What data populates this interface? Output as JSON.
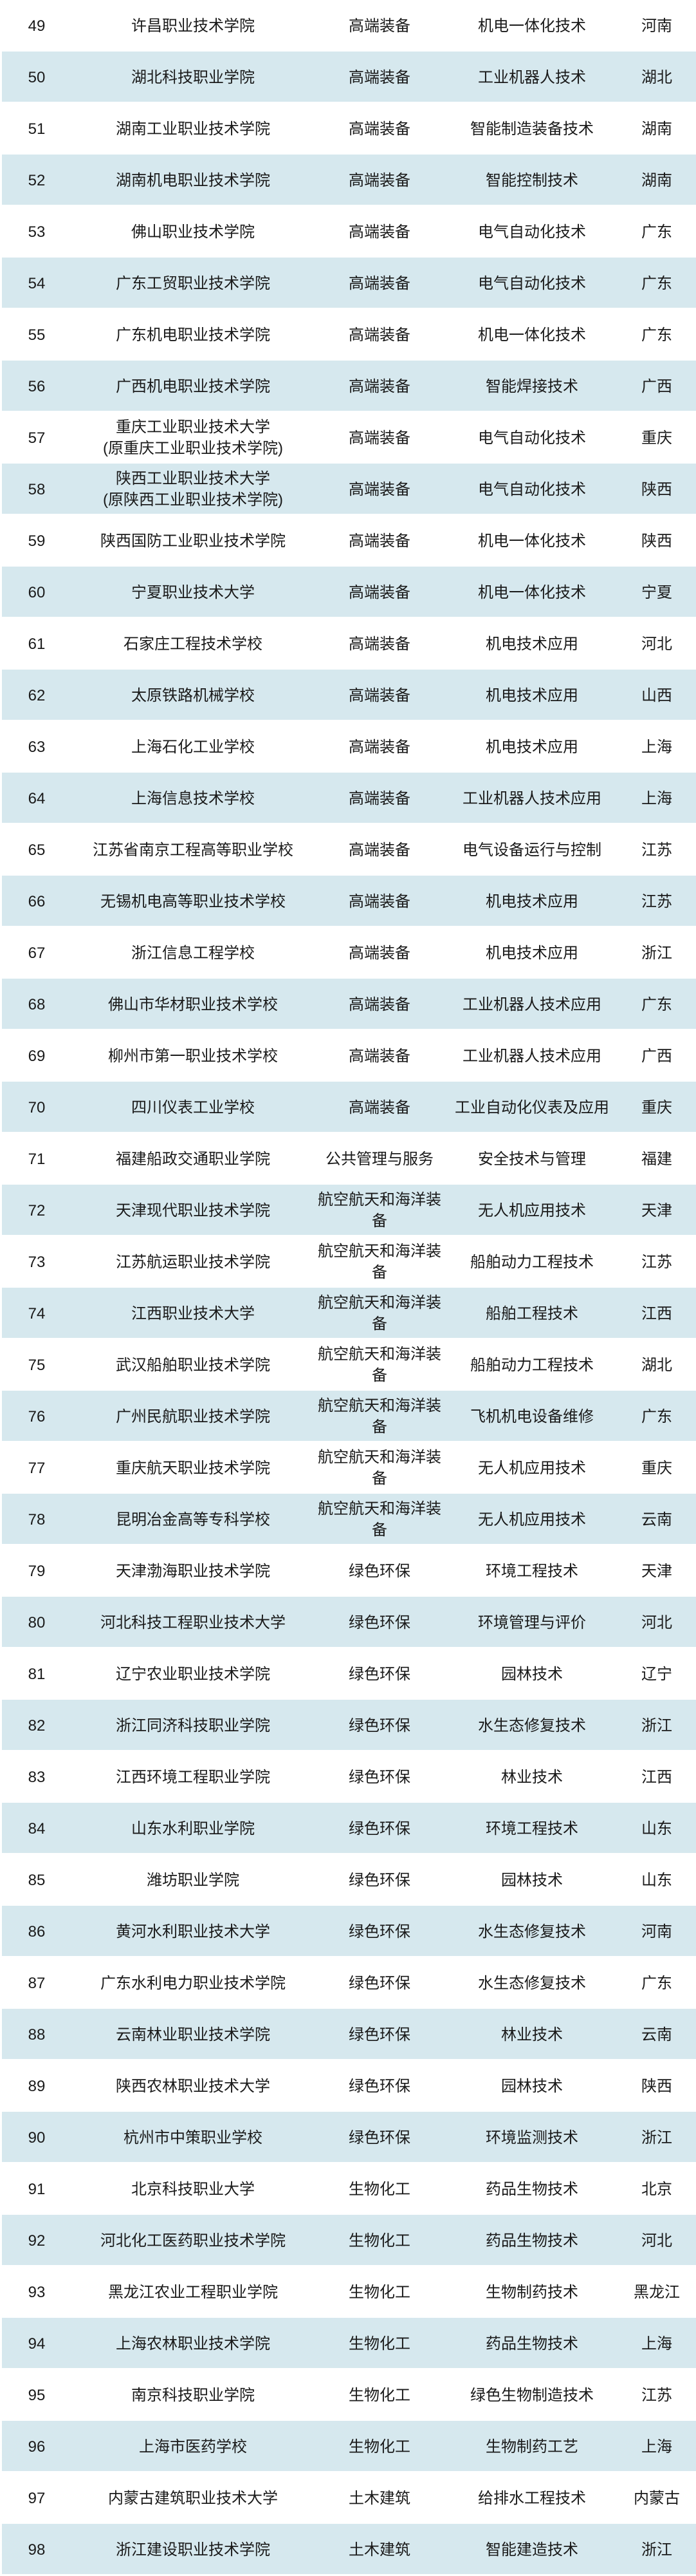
{
  "colors": {
    "row_bg": "#ffffff",
    "row_alt_bg": "#d6e8ee",
    "text": "#1a1a1a"
  },
  "table": {
    "rows": [
      {
        "rank": 49,
        "school": "许昌职业技术学院",
        "category": "高端装备",
        "major": "机电一体化技术",
        "province": "河南"
      },
      {
        "rank": 50,
        "school": "湖北科技职业学院",
        "category": "高端装备",
        "major": "工业机器人技术",
        "province": "湖北"
      },
      {
        "rank": 51,
        "school": "湖南工业职业技术学院",
        "category": "高端装备",
        "major": "智能制造装备技术",
        "province": "湖南"
      },
      {
        "rank": 52,
        "school": "湖南机电职业技术学院",
        "category": "高端装备",
        "major": "智能控制技术",
        "province": "湖南"
      },
      {
        "rank": 53,
        "school": "佛山职业技术学院",
        "category": "高端装备",
        "major": "电气自动化技术",
        "province": "广东"
      },
      {
        "rank": 54,
        "school": "广东工贸职业技术学院",
        "category": "高端装备",
        "major": "电气自动化技术",
        "province": "广东"
      },
      {
        "rank": 55,
        "school": "广东机电职业技术学院",
        "category": "高端装备",
        "major": "机电一体化技术",
        "province": "广东"
      },
      {
        "rank": 56,
        "school": "广西机电职业技术学院",
        "category": "高端装备",
        "major": "智能焊接技术",
        "province": "广西"
      },
      {
        "rank": 57,
        "school": "重庆工业职业技术大学\n(原重庆工业职业技术学院)",
        "category": "高端装备",
        "major": "电气自动化技术",
        "province": "重庆"
      },
      {
        "rank": 58,
        "school": "陕西工业职业技术大学\n(原陕西工业职业技术学院)",
        "category": "高端装备",
        "major": "电气自动化技术",
        "province": "陕西"
      },
      {
        "rank": 59,
        "school": "陕西国防工业职业技术学院",
        "category": "高端装备",
        "major": "机电一体化技术",
        "province": "陕西"
      },
      {
        "rank": 60,
        "school": "宁夏职业技术大学",
        "category": "高端装备",
        "major": "机电一体化技术",
        "province": "宁夏"
      },
      {
        "rank": 61,
        "school": "石家庄工程技术学校",
        "category": "高端装备",
        "major": "机电技术应用",
        "province": "河北"
      },
      {
        "rank": 62,
        "school": "太原铁路机械学校",
        "category": "高端装备",
        "major": "机电技术应用",
        "province": "山西"
      },
      {
        "rank": 63,
        "school": "上海石化工业学校",
        "category": "高端装备",
        "major": "机电技术应用",
        "province": "上海"
      },
      {
        "rank": 64,
        "school": "上海信息技术学校",
        "category": "高端装备",
        "major": "工业机器人技术应用",
        "province": "上海"
      },
      {
        "rank": 65,
        "school": "江苏省南京工程高等职业学校",
        "category": "高端装备",
        "major": "电气设备运行与控制",
        "province": "江苏"
      },
      {
        "rank": 66,
        "school": "无锡机电高等职业技术学校",
        "category": "高端装备",
        "major": "机电技术应用",
        "province": "江苏"
      },
      {
        "rank": 67,
        "school": "浙江信息工程学校",
        "category": "高端装备",
        "major": "机电技术应用",
        "province": "浙江"
      },
      {
        "rank": 68,
        "school": "佛山市华材职业技术学校",
        "category": "高端装备",
        "major": "工业机器人技术应用",
        "province": "广东"
      },
      {
        "rank": 69,
        "school": "柳州市第一职业技术学校",
        "category": "高端装备",
        "major": "工业机器人技术应用",
        "province": "广西"
      },
      {
        "rank": 70,
        "school": "四川仪表工业学校",
        "category": "高端装备",
        "major": "工业自动化仪表及应用",
        "province": "重庆"
      },
      {
        "rank": 71,
        "school": "福建船政交通职业学院",
        "category": "公共管理与服务",
        "major": "安全技术与管理",
        "province": "福建"
      },
      {
        "rank": 72,
        "school": "天津现代职业技术学院",
        "category": "航空航天和海洋装备",
        "major": "无人机应用技术",
        "province": "天津"
      },
      {
        "rank": 73,
        "school": "江苏航运职业技术学院",
        "category": "航空航天和海洋装备",
        "major": "船舶动力工程技术",
        "province": "江苏"
      },
      {
        "rank": 74,
        "school": "江西职业技术大学",
        "category": "航空航天和海洋装备",
        "major": "船舶工程技术",
        "province": "江西"
      },
      {
        "rank": 75,
        "school": "武汉船舶职业技术学院",
        "category": "航空航天和海洋装备",
        "major": "船舶动力工程技术",
        "province": "湖北"
      },
      {
        "rank": 76,
        "school": "广州民航职业技术学院",
        "category": "航空航天和海洋装备",
        "major": "飞机机电设备维修",
        "province": "广东"
      },
      {
        "rank": 77,
        "school": "重庆航天职业技术学院",
        "category": "航空航天和海洋装备",
        "major": "无人机应用技术",
        "province": "重庆"
      },
      {
        "rank": 78,
        "school": "昆明冶金高等专科学校",
        "category": "航空航天和海洋装备",
        "major": "无人机应用技术",
        "province": "云南"
      },
      {
        "rank": 79,
        "school": "天津渤海职业技术学院",
        "category": "绿色环保",
        "major": "环境工程技术",
        "province": "天津"
      },
      {
        "rank": 80,
        "school": "河北科技工程职业技术大学",
        "category": "绿色环保",
        "major": "环境管理与评价",
        "province": "河北"
      },
      {
        "rank": 81,
        "school": "辽宁农业职业技术学院",
        "category": "绿色环保",
        "major": "园林技术",
        "province": "辽宁"
      },
      {
        "rank": 82,
        "school": "浙江同济科技职业学院",
        "category": "绿色环保",
        "major": "水生态修复技术",
        "province": "浙江"
      },
      {
        "rank": 83,
        "school": "江西环境工程职业学院",
        "category": "绿色环保",
        "major": "林业技术",
        "province": "江西"
      },
      {
        "rank": 84,
        "school": "山东水利职业学院",
        "category": "绿色环保",
        "major": "环境工程技术",
        "province": "山东"
      },
      {
        "rank": 85,
        "school": "潍坊职业学院",
        "category": "绿色环保",
        "major": "园林技术",
        "province": "山东"
      },
      {
        "rank": 86,
        "school": "黄河水利职业技术大学",
        "category": "绿色环保",
        "major": "水生态修复技术",
        "province": "河南"
      },
      {
        "rank": 87,
        "school": "广东水利电力职业技术学院",
        "category": "绿色环保",
        "major": "水生态修复技术",
        "province": "广东"
      },
      {
        "rank": 88,
        "school": "云南林业职业技术学院",
        "category": "绿色环保",
        "major": "林业技术",
        "province": "云南"
      },
      {
        "rank": 89,
        "school": "陕西农林职业技术大学",
        "category": "绿色环保",
        "major": "园林技术",
        "province": "陕西"
      },
      {
        "rank": 90,
        "school": "杭州市中策职业学校",
        "category": "绿色环保",
        "major": "环境监测技术",
        "province": "浙江"
      },
      {
        "rank": 91,
        "school": "北京科技职业大学",
        "category": "生物化工",
        "major": "药品生物技术",
        "province": "北京"
      },
      {
        "rank": 92,
        "school": "河北化工医药职业技术学院",
        "category": "生物化工",
        "major": "药品生物技术",
        "province": "河北"
      },
      {
        "rank": 93,
        "school": "黑龙江农业工程职业学院",
        "category": "生物化工",
        "major": "生物制药技术",
        "province": "黑龙江"
      },
      {
        "rank": 94,
        "school": "上海农林职业技术学院",
        "category": "生物化工",
        "major": "药品生物技术",
        "province": "上海"
      },
      {
        "rank": 95,
        "school": "南京科技职业学院",
        "category": "生物化工",
        "major": "绿色生物制造技术",
        "province": "江苏"
      },
      {
        "rank": 96,
        "school": "上海市医药学校",
        "category": "生物化工",
        "major": "生物制药工艺",
        "province": "上海"
      },
      {
        "rank": 97,
        "school": "内蒙古建筑职业技术大学",
        "category": "土木建筑",
        "major": "给排水工程技术",
        "province": "内蒙古"
      },
      {
        "rank": 98,
        "school": "浙江建设职业技术学院",
        "category": "土木建筑",
        "major": "智能建造技术",
        "province": "浙江"
      }
    ]
  }
}
